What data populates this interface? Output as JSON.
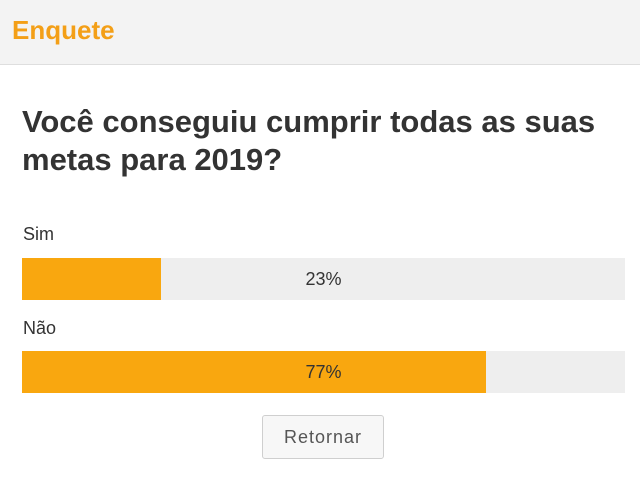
{
  "header": {
    "title": "Enquete"
  },
  "question": "Você conseguiu cumprir todas as suas metas para 2019?",
  "options": [
    {
      "label": "Sim",
      "percent_text": "23%",
      "value": 23
    },
    {
      "label": "Não",
      "percent_text": "77%",
      "value": 77
    }
  ],
  "button": {
    "label": "Retornar"
  },
  "colors": {
    "accent": "#f39f17",
    "bar_fill": "#f9a70f",
    "bar_track": "#eeeeee",
    "header_bg": "#f3f3f3"
  }
}
